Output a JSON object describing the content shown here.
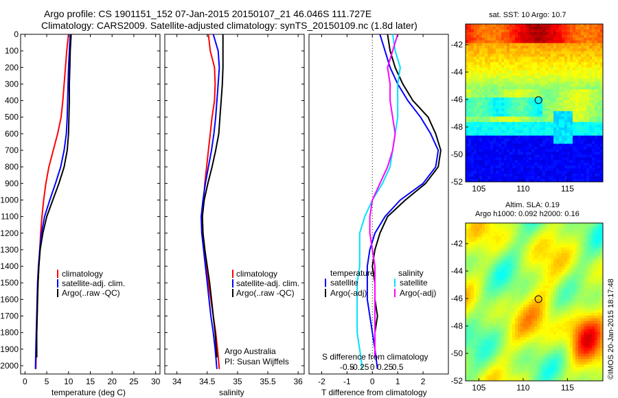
{
  "header": {
    "line1": "Argo profile: CS 1901151_152 07-Jan-2015 20150107_21 46.046S 111.727E",
    "line2": "Climatology: CARS2009. Satellite-adjusted climatology: synTS_20150109.nc (1.8d later)"
  },
  "colors": {
    "climatology": "#ff0000",
    "satellite": "#0000ff",
    "argo": "#000000",
    "sal_satellite": "#00e0ff",
    "sal_argo": "#ff00ff"
  },
  "chart_data": [
    {
      "type": "line",
      "id": "temperature",
      "xlabel": "temperature (deg C)",
      "ylabel": "",
      "xlim": [
        -1,
        31
      ],
      "ylim": [
        2050,
        0
      ],
      "xticks": [
        0,
        5,
        10,
        15,
        20,
        25,
        30
      ],
      "yticks": [
        0,
        100,
        200,
        300,
        400,
        500,
        600,
        700,
        800,
        900,
        1000,
        1100,
        1200,
        1300,
        1400,
        1500,
        1600,
        1700,
        1800,
        1900,
        2000
      ],
      "legend": [
        "climatology",
        "satellite-adj. clim.",
        "Argo(..raw -QC)"
      ],
      "series": [
        {
          "name": "climatology",
          "color": "#ff0000",
          "x": [
            10.0,
            9.6,
            9.3,
            9.0,
            8.7,
            8.3,
            7.5,
            6.5,
            5.5,
            4.8,
            4.3,
            3.9,
            3.6,
            3.4,
            3.2,
            3.0,
            2.9,
            2.8,
            2.7,
            2.6,
            2.5
          ],
          "y": [
            0,
            100,
            200,
            300,
            400,
            500,
            600,
            700,
            800,
            900,
            1000,
            1100,
            1200,
            1300,
            1400,
            1500,
            1600,
            1700,
            1800,
            1900,
            2020
          ]
        },
        {
          "name": "satellite-adj. clim.",
          "color": "#0000ff",
          "x": [
            10.4,
            10.2,
            10.0,
            9.9,
            9.8,
            9.7,
            9.5,
            9.0,
            8.2,
            7.0,
            5.7,
            4.5,
            3.8,
            3.4,
            3.1,
            2.9,
            2.8,
            2.7,
            2.6,
            2.5,
            2.4
          ],
          "y": [
            0,
            100,
            200,
            300,
            400,
            500,
            600,
            700,
            800,
            900,
            1000,
            1100,
            1200,
            1300,
            1400,
            1500,
            1600,
            1700,
            1800,
            1900,
            2020
          ]
        },
        {
          "name": "Argo(..raw -QC)",
          "color": "#000000",
          "x": [
            10.6,
            10.4,
            10.3,
            10.2,
            10.2,
            10.1,
            10.0,
            9.7,
            9.0,
            7.8,
            6.4,
            5.0,
            4.1,
            3.5,
            3.2,
            3.0,
            2.9,
            2.8,
            2.7,
            2.7
          ],
          "y": [
            0,
            100,
            200,
            300,
            400,
            500,
            600,
            700,
            800,
            900,
            1000,
            1100,
            1200,
            1300,
            1400,
            1500,
            1600,
            1700,
            1800,
            1950
          ]
        }
      ]
    },
    {
      "type": "line",
      "id": "salinity",
      "xlabel": "salinity",
      "ylabel": "",
      "xlim": [
        33.8,
        36.1
      ],
      "ylim": [
        2050,
        0
      ],
      "xticks": [
        34,
        34.5,
        35,
        35.5,
        36
      ],
      "xticklabels": [
        "34",
        "34.5",
        "35",
        "35.5",
        "36"
      ],
      "legend": [
        "climatology",
        "satellite-adj. clim.",
        "Argo(..raw -QC)"
      ],
      "series": [
        {
          "name": "climatology",
          "color": "#ff0000",
          "x": [
            34.52,
            34.55,
            34.62,
            34.63,
            34.62,
            34.58,
            34.55,
            34.52,
            34.49,
            34.46,
            34.44,
            34.42,
            34.43,
            34.46,
            34.49,
            34.52,
            34.56,
            34.6,
            34.64,
            34.67,
            34.7
          ],
          "y": [
            0,
            100,
            200,
            300,
            400,
            500,
            600,
            700,
            800,
            900,
            1000,
            1100,
            1200,
            1300,
            1400,
            1500,
            1600,
            1700,
            1800,
            1900,
            2020
          ]
        },
        {
          "name": "satellite-adj. clim.",
          "color": "#0000ff",
          "x": [
            34.6,
            34.68,
            34.7,
            34.68,
            34.66,
            34.64,
            34.61,
            34.57,
            34.52,
            34.47,
            34.43,
            34.4,
            34.41,
            34.44,
            34.47,
            34.5,
            34.53,
            34.56,
            34.6,
            34.63,
            34.66
          ],
          "y": [
            0,
            100,
            200,
            300,
            400,
            500,
            600,
            700,
            800,
            900,
            1000,
            1100,
            1200,
            1300,
            1400,
            1500,
            1600,
            1700,
            1800,
            1900,
            2020
          ]
        },
        {
          "name": "Argo(..raw -QC)",
          "color": "#000000",
          "x": [
            34.76,
            34.76,
            34.76,
            34.75,
            34.73,
            34.71,
            34.69,
            34.64,
            34.58,
            34.51,
            34.45,
            34.42,
            34.43,
            34.46,
            34.5,
            34.54,
            34.57,
            34.6,
            34.63,
            34.66
          ],
          "y": [
            0,
            100,
            200,
            300,
            400,
            500,
            600,
            700,
            800,
            900,
            1000,
            1100,
            1200,
            1300,
            1400,
            1500,
            1600,
            1700,
            1800,
            1950
          ]
        }
      ],
      "annotation": [
        "Argo Australia",
        "PI: Susan Wijffels"
      ]
    },
    {
      "type": "line",
      "id": "differences",
      "xlabel": "T difference from climatology",
      "xlabel2": "S difference from climatology",
      "ylabel": "",
      "xlim": [
        -2.5,
        3.0
      ],
      "ylim": [
        2050,
        0
      ],
      "xticks": [
        -2,
        -1,
        0,
        1,
        2
      ],
      "xticks_s": [
        "-0.5",
        "-0.25",
        "0",
        "0.25",
        "0.5"
      ],
      "legend_t_title": "temperature",
      "legend_s_title": "salinity",
      "legend": [
        "satellite",
        "Argo(-adj)",
        "satellite",
        "Argo(-adj)"
      ],
      "series": [
        {
          "name": "temperature satellite",
          "color": "#0000ff",
          "x": [
            0.3,
            0.5,
            0.7,
            1.0,
            1.4,
            1.9,
            2.3,
            2.6,
            2.5,
            2.0,
            1.1,
            0.5,
            0.1,
            -0.1,
            -0.2,
            -0.2,
            -0.2,
            -0.1,
            0.0,
            0.1,
            0.2
          ],
          "y": [
            0,
            100,
            200,
            300,
            400,
            500,
            600,
            700,
            800,
            900,
            1000,
            1100,
            1200,
            1300,
            1400,
            1500,
            1600,
            1700,
            1800,
            1900,
            2020
          ]
        },
        {
          "name": "temperature Argo(-adj)",
          "color": "#000000",
          "x": [
            0.6,
            0.7,
            0.9,
            1.2,
            1.6,
            2.2,
            2.5,
            2.7,
            2.6,
            2.1,
            1.3,
            0.6,
            0.3,
            0.1,
            0.0,
            0.1,
            0.1,
            0.2,
            0.1,
            0.1
          ],
          "y": [
            0,
            100,
            200,
            300,
            400,
            500,
            600,
            700,
            800,
            900,
            1000,
            1100,
            1200,
            1300,
            1400,
            1500,
            1600,
            1700,
            1800,
            1950
          ]
        },
        {
          "name": "salinity satellite",
          "color": "#00e0ff",
          "x": [
            0.8,
            0.9,
            1.1,
            1.0,
            1.0,
            1.0,
            0.9,
            0.8,
            0.7,
            0.4,
            0.0,
            -0.3,
            -0.5,
            -0.5,
            -0.5,
            -0.6,
            -0.6,
            -0.6,
            -0.6,
            -0.5,
            -0.4
          ],
          "y": [
            0,
            100,
            200,
            300,
            400,
            500,
            600,
            700,
            800,
            900,
            1000,
            1100,
            1200,
            1300,
            1400,
            1500,
            1600,
            1700,
            1800,
            1900,
            2020
          ]
        },
        {
          "name": "salinity Argo(-adj)",
          "color": "#ff00ff",
          "x": [
            1.0,
            0.8,
            0.6,
            0.7,
            0.7,
            0.8,
            0.9,
            0.8,
            0.6,
            0.3,
            0.0,
            -0.1,
            -0.1,
            0.0,
            0.1,
            0.1,
            0.1,
            0.1,
            0.1,
            0.1
          ],
          "y": [
            0,
            100,
            200,
            300,
            400,
            500,
            600,
            700,
            800,
            900,
            1000,
            1100,
            1200,
            1300,
            1400,
            1500,
            1600,
            1700,
            1800,
            1950
          ]
        }
      ]
    },
    {
      "type": "heatmap",
      "id": "sst_map",
      "title": "sat. SST: 10 Argo: 10.7",
      "xlim": [
        103.5,
        119
      ],
      "ylim": [
        -52,
        -40.5
      ],
      "xticks": [
        105,
        110,
        115
      ],
      "yticks": [
        -42,
        -44,
        -46,
        -48,
        -50,
        -52
      ],
      "marker": {
        "lon": 111.727,
        "lat": -46.046
      }
    },
    {
      "type": "heatmap",
      "id": "sla_map",
      "title": "Altim. SLA: 0.19",
      "subtitle": "Argo h1000: 0.092 h2000: 0.16",
      "xlim": [
        103.5,
        119
      ],
      "ylim": [
        -52,
        -40.5
      ],
      "xticks": [
        105,
        110,
        115
      ],
      "yticks": [
        -42,
        -44,
        -46,
        -48,
        -50,
        -52
      ],
      "marker": {
        "lon": 111.727,
        "lat": -46.046
      }
    }
  ],
  "footer": {
    "credit": "©IMOS 20-Jan-2015 18:17:48"
  }
}
